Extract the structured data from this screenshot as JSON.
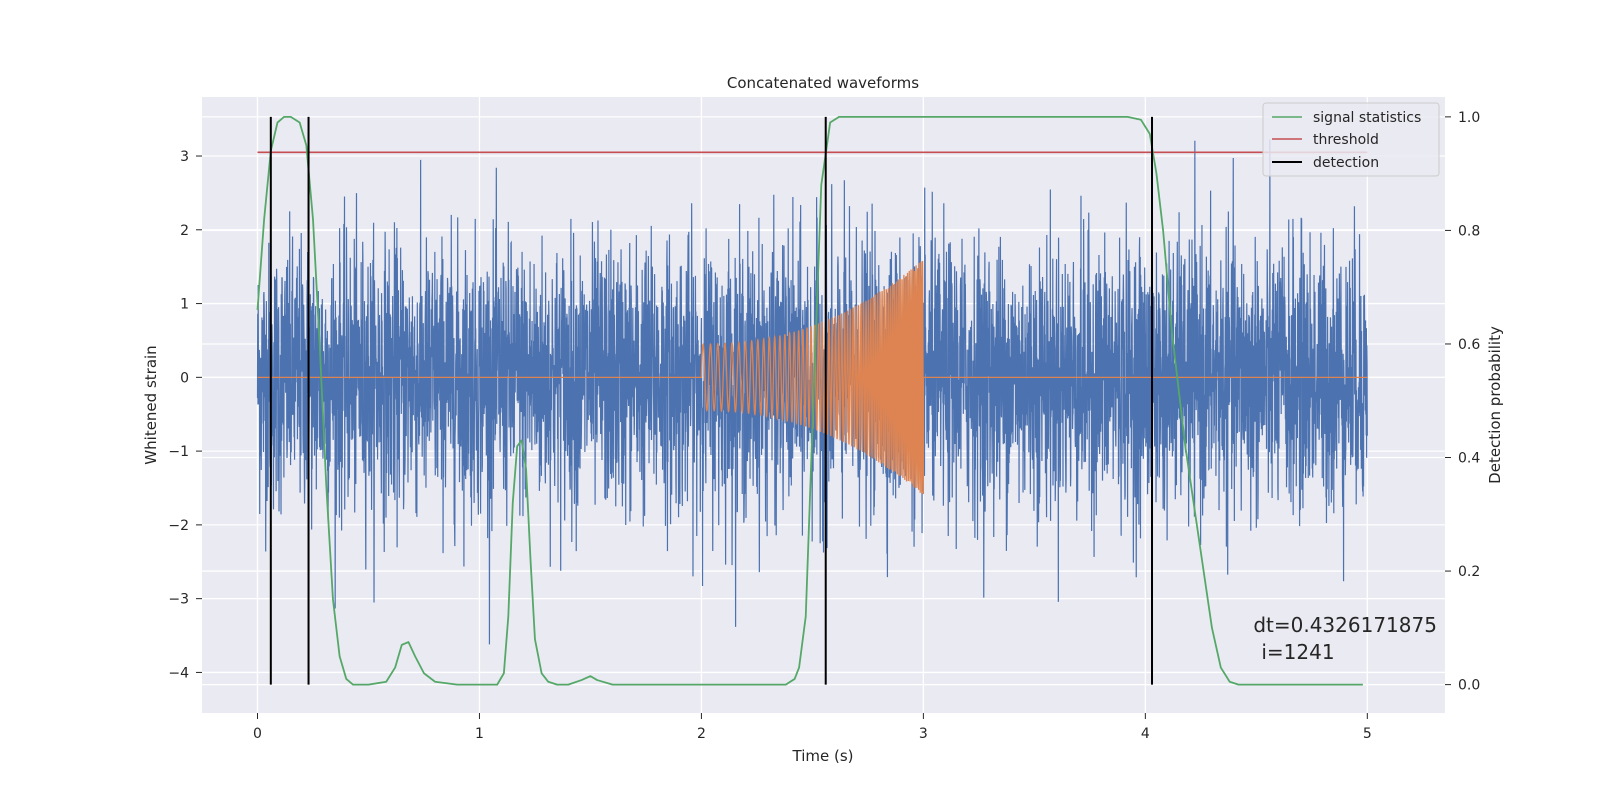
{
  "chart_data": {
    "type": "line",
    "title": "Concatenated waveforms",
    "xlabel": "Time (s)",
    "ylabel": "Whitened strain",
    "ylabel_right": "Detection probability",
    "xlim": [
      -0.25,
      5.35
    ],
    "ylim": [
      -4.55,
      3.8
    ],
    "ylim_right": [
      -0.05,
      1.035
    ],
    "x_ticks": [
      0,
      1,
      2,
      3,
      4,
      5
    ],
    "y_ticks": [
      3,
      2,
      1,
      0,
      -1,
      -2,
      -3,
      -4
    ],
    "y_ticks_right": [
      1.0,
      0.8,
      0.6,
      0.4,
      0.2,
      0.0
    ],
    "x_tick_labels": [
      "0",
      "1",
      "2",
      "3",
      "4",
      "5"
    ],
    "y_tick_labels": [
      "3",
      "2",
      "1",
      "0",
      "−1",
      "−2",
      "−3",
      "−4"
    ],
    "y_tick_labels_right": [
      "1.0",
      "0.8",
      "0.6",
      "0.4",
      "0.2",
      "0.0"
    ],
    "grid": true,
    "legend_position": "top-right",
    "legend": [
      "signal statistics",
      "threshold",
      "detection"
    ],
    "series": [
      {
        "name": "",
        "axis": "left",
        "kind": "noise",
        "x_range": [
          0,
          5
        ],
        "amplitude_std": 0.9,
        "color": "#4C72B0"
      },
      {
        "name": "",
        "axis": "left",
        "kind": "chirp",
        "x_range": [
          2,
          3
        ],
        "amplitude_start": 0.45,
        "amplitude_end": 1.6,
        "color": "#DD8452"
      },
      {
        "name": "signal statistics",
        "axis": "right",
        "color": "#55A868",
        "x": [
          0,
          0.03,
          0.06,
          0.09,
          0.12,
          0.15,
          0.19,
          0.22,
          0.25,
          0.28,
          0.31,
          0.34,
          0.37,
          0.4,
          0.43,
          0.5,
          0.58,
          0.62,
          0.65,
          0.68,
          0.71,
          0.75,
          0.8,
          0.9,
          1.0,
          1.08,
          1.11,
          1.13,
          1.15,
          1.17,
          1.19,
          1.21,
          1.23,
          1.25,
          1.28,
          1.31,
          1.35,
          1.4,
          1.46,
          1.5,
          1.53,
          1.6,
          1.8,
          2.2,
          2.38,
          2.42,
          2.44,
          2.47,
          2.5,
          2.54,
          2.58,
          2.62,
          2.7,
          3.0,
          3.5,
          3.92,
          3.98,
          4.02,
          4.05,
          4.08,
          4.12,
          4.18,
          4.24,
          4.3,
          4.34,
          4.38,
          4.42,
          4.6,
          4.98
        ],
        "y": [
          0.66,
          0.82,
          0.94,
          0.99,
          1.0,
          1.0,
          0.99,
          0.95,
          0.82,
          0.6,
          0.35,
          0.15,
          0.05,
          0.01,
          0.0,
          0.0,
          0.005,
          0.03,
          0.07,
          0.075,
          0.05,
          0.02,
          0.005,
          0.0,
          0.0,
          0.0,
          0.02,
          0.12,
          0.32,
          0.42,
          0.43,
          0.38,
          0.22,
          0.08,
          0.02,
          0.005,
          0.0,
          0.0,
          0.008,
          0.015,
          0.008,
          0.0,
          0.0,
          0.0,
          0.0,
          0.01,
          0.03,
          0.12,
          0.45,
          0.88,
          0.99,
          1.0,
          1.0,
          1.0,
          1.0,
          1.0,
          0.995,
          0.97,
          0.9,
          0.8,
          0.62,
          0.42,
          0.26,
          0.1,
          0.03,
          0.005,
          0.0,
          0.0,
          0.0
        ]
      },
      {
        "name": "threshold",
        "axis": "left",
        "color": "#C44E52",
        "x": [
          0,
          5
        ],
        "y": [
          3.05,
          3.05
        ]
      }
    ],
    "detections": [
      0.06,
      0.23,
      2.56,
      4.03
    ],
    "detection_color": "#000000",
    "annotation": {
      "line1": "dt=0.4326171875",
      "line2": "i=1241",
      "x": 4.5,
      "y": -3.45
    }
  }
}
